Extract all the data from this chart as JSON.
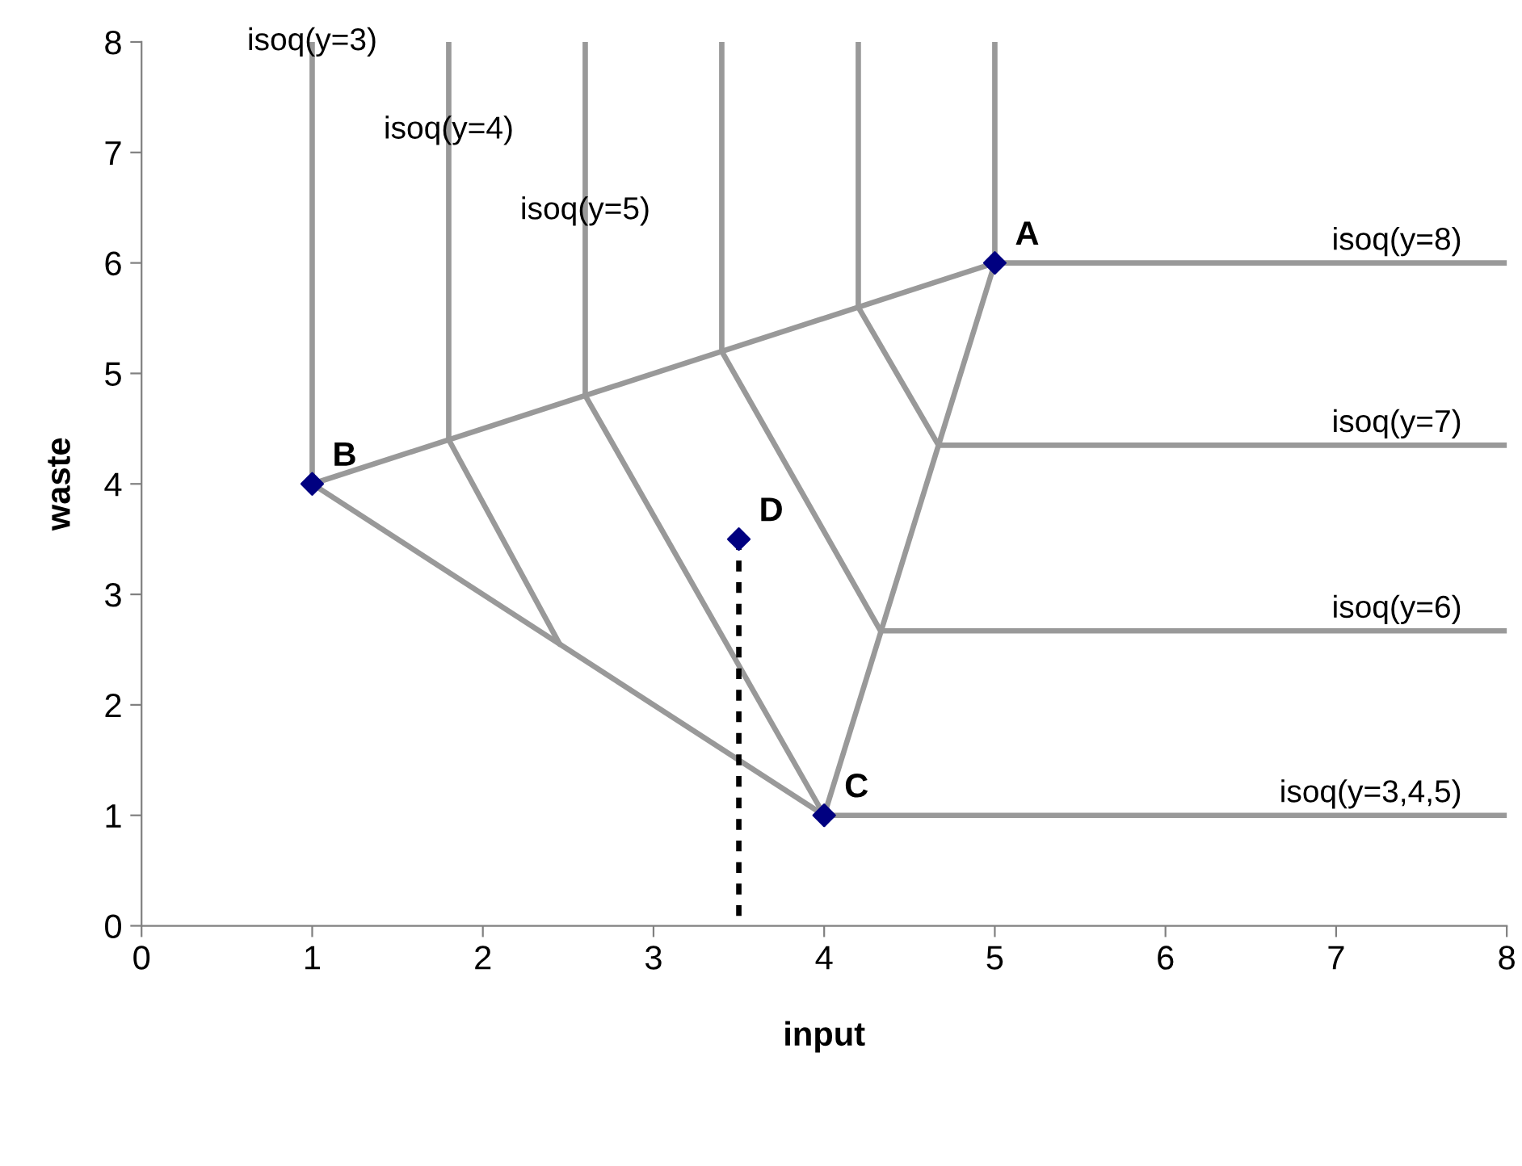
{
  "chart_data": {
    "type": "line",
    "xlabel": "input",
    "ylabel": "waste",
    "xlim": [
      0,
      8
    ],
    "ylim": [
      0,
      8
    ],
    "xticks": [
      0,
      1,
      2,
      3,
      4,
      5,
      6,
      7,
      8
    ],
    "yticks": [
      0,
      1,
      2,
      3,
      4,
      5,
      6,
      7,
      8
    ],
    "grid": false,
    "legend": false,
    "series": [
      {
        "color": "#999999",
        "x": [
          1,
          5
        ],
        "values": [
          4,
          6
        ],
        "marker": "none",
        "line_style": "solid"
      },
      {
        "color": "#999999",
        "x": [
          1,
          4
        ],
        "values": [
          4,
          1
        ],
        "marker": "none",
        "line_style": "solid"
      },
      {
        "color": "#999999",
        "x": [
          4,
          5
        ],
        "values": [
          1,
          6
        ],
        "marker": "none",
        "line_style": "solid"
      },
      {
        "color": "#999999",
        "x": [
          1,
          1
        ],
        "values": [
          8,
          4
        ],
        "marker": "none",
        "line_style": "solid"
      },
      {
        "color": "#999999",
        "x": [
          1.8,
          1.8
        ],
        "values": [
          8,
          4.4
        ],
        "marker": "none",
        "line_style": "solid"
      },
      {
        "color": "#999999",
        "x": [
          1.8,
          2.45
        ],
        "values": [
          4.4,
          2.55
        ],
        "marker": "none",
        "line_style": "solid"
      },
      {
        "color": "#999999",
        "x": [
          2.6,
          2.6
        ],
        "values": [
          8,
          4.8
        ],
        "marker": "none",
        "line_style": "solid"
      },
      {
        "color": "#999999",
        "x": [
          2.6,
          4
        ],
        "values": [
          4.8,
          1
        ],
        "marker": "none",
        "line_style": "solid"
      },
      {
        "color": "#999999",
        "x": [
          3.4,
          3.4
        ],
        "values": [
          8,
          5.2
        ],
        "marker": "none",
        "line_style": "solid"
      },
      {
        "color": "#999999",
        "x": [
          3.4,
          4.33,
          8
        ],
        "values": [
          5.2,
          2.67,
          2.67
        ],
        "marker": "none",
        "line_style": "solid"
      },
      {
        "color": "#999999",
        "x": [
          4.2,
          4.2
        ],
        "values": [
          8,
          5.6
        ],
        "marker": "none",
        "line_style": "solid"
      },
      {
        "color": "#999999",
        "x": [
          4.2,
          4.67,
          8
        ],
        "values": [
          5.6,
          4.35,
          4.35
        ],
        "marker": "none",
        "line_style": "solid"
      },
      {
        "color": "#999999",
        "x": [
          5,
          5
        ],
        "values": [
          8,
          6
        ],
        "marker": "none",
        "line_style": "solid"
      },
      {
        "color": "#999999",
        "x": [
          5,
          8
        ],
        "values": [
          6,
          6
        ],
        "marker": "none",
        "line_style": "solid"
      },
      {
        "color": "#999999",
        "x": [
          4,
          8
        ],
        "values": [
          1,
          1
        ],
        "marker": "none",
        "line_style": "solid"
      },
      {
        "color": "#000000",
        "x": [
          3.5,
          3.5
        ],
        "values": [
          3.5,
          0
        ],
        "marker": "none",
        "line_style": "dotted"
      },
      {
        "type": "scatter",
        "color": "#000080",
        "x": [
          5,
          1,
          4,
          3.5
        ],
        "values": [
          6,
          4,
          1,
          3.5
        ],
        "marker": "diamond"
      }
    ],
    "annotations": [
      {
        "text": "A",
        "x": 5,
        "y": 6
      },
      {
        "text": "B",
        "x": 1,
        "y": 4
      },
      {
        "text": "C",
        "x": 4,
        "y": 1
      },
      {
        "text": "D",
        "x": 3.5,
        "y": 3.5
      },
      {
        "text": "isoq(y=3)",
        "x": 1,
        "y": 8
      },
      {
        "text": "isoq(y=4)",
        "x": 1.8,
        "y": 7.2
      },
      {
        "text": "isoq(y=5)",
        "x": 2.6,
        "y": 6.47
      },
      {
        "text": "isoq(y=8)",
        "x": 8,
        "y": 6
      },
      {
        "text": "isoq(y=7)",
        "x": 8,
        "y": 4.35
      },
      {
        "text": "isoq(y=6)",
        "x": 8,
        "y": 2.67
      },
      {
        "text": "isoq(y=3,4,5)",
        "x": 8,
        "y": 1
      }
    ]
  }
}
